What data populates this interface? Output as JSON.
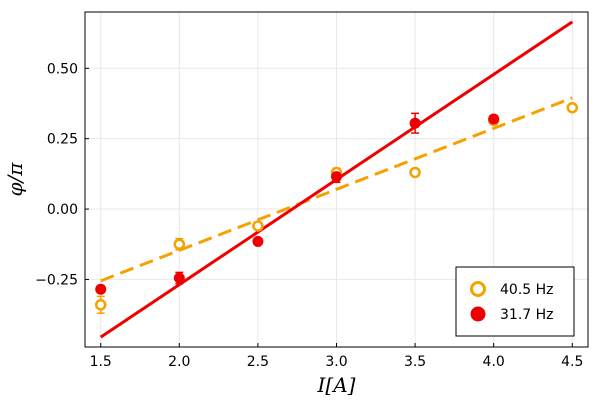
{
  "chart_data": {
    "type": "scatter",
    "title": "",
    "xlabel": "I[A]",
    "ylabel": "φ/π",
    "xlim": [
      1.4,
      4.6
    ],
    "ylim": [
      -0.49,
      0.7
    ],
    "xticks": [
      {
        "v": 1.5,
        "label": "1.5"
      },
      {
        "v": 2.0,
        "label": "2.0"
      },
      {
        "v": 2.5,
        "label": "2.5"
      },
      {
        "v": 3.0,
        "label": "3.0"
      },
      {
        "v": 3.5,
        "label": "3.5"
      },
      {
        "v": 4.0,
        "label": "4.0"
      },
      {
        "v": 4.5,
        "label": "4.5"
      }
    ],
    "yticks": [
      {
        "v": -0.25,
        "label": "−0.25"
      },
      {
        "v": 0.0,
        "label": "0.00"
      },
      {
        "v": 0.25,
        "label": "0.25"
      },
      {
        "v": 0.5,
        "label": "0.50"
      }
    ],
    "grid": true,
    "legend_position": "bottom-right",
    "series": [
      {
        "name": "40.5 Hz",
        "color": "#F5A200",
        "marker": "open-circle",
        "points": [
          {
            "x": 1.5,
            "y": -0.34,
            "err": 0.03
          },
          {
            "x": 2.0,
            "y": -0.125,
            "err": 0.02
          },
          {
            "x": 2.5,
            "y": -0.06,
            "err": 0.012
          },
          {
            "x": 3.0,
            "y": 0.13,
            "err": 0.015
          },
          {
            "x": 3.5,
            "y": 0.13,
            "err": 0.008
          },
          {
            "x": 4.0,
            "y": 0.315,
            "err": 0.012
          },
          {
            "x": 4.5,
            "y": 0.36,
            "err": 0.01
          }
        ],
        "fit": {
          "style": "dashed",
          "x": [
            1.5,
            4.5
          ],
          "y": [
            -0.255,
            0.395
          ]
        }
      },
      {
        "name": "31.7 Hz",
        "color": "#EE0000",
        "marker": "filled-circle",
        "points": [
          {
            "x": 1.5,
            "y": -0.285,
            "err": 0.012
          },
          {
            "x": 2.0,
            "y": -0.245,
            "err": 0.02
          },
          {
            "x": 2.5,
            "y": -0.115,
            "err": 0.01
          },
          {
            "x": 3.0,
            "y": 0.115,
            "err": 0.02
          },
          {
            "x": 3.5,
            "y": 0.305,
            "err": 0.035
          },
          {
            "x": 4.0,
            "y": 0.32,
            "err": 0.012
          }
        ],
        "fit": {
          "style": "solid",
          "x": [
            1.5,
            4.5
          ],
          "y": [
            -0.455,
            0.665
          ]
        }
      }
    ]
  }
}
